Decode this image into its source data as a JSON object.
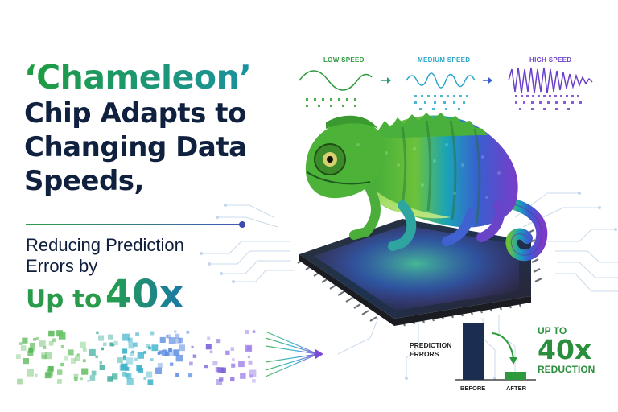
{
  "headline": {
    "line1": "‘Chameleon’",
    "line2": "Chip Adapts to",
    "line3": "Changing Data",
    "line4": "Speeds,"
  },
  "subhead": {
    "line1": "Reducing Prediction",
    "line2": "Errors by",
    "up_to": "Up to",
    "factor": "40x"
  },
  "speeds": [
    {
      "label": "LOW SPEED",
      "color": "#2e9a3e"
    },
    {
      "label": "MEDIUM SPEED",
      "color": "#2aa6c8"
    },
    {
      "label": "HIGH SPEED",
      "color": "#6a3fc8"
    }
  ],
  "result_chart": {
    "title_line1": "PREDICTION",
    "title_line2": "ERRORS",
    "before_label": "BEFORE",
    "after_label": "AFTER",
    "up_to": "UP TO",
    "factor": "40x",
    "reduction": "REDUCTION",
    "before_color": "#1c2d52",
    "after_color": "#2e9a3e"
  },
  "colors": {
    "navy": "#10213f",
    "green": "#2a9b4a",
    "teal": "#1a8fb0",
    "purple": "#6a3fc8"
  }
}
